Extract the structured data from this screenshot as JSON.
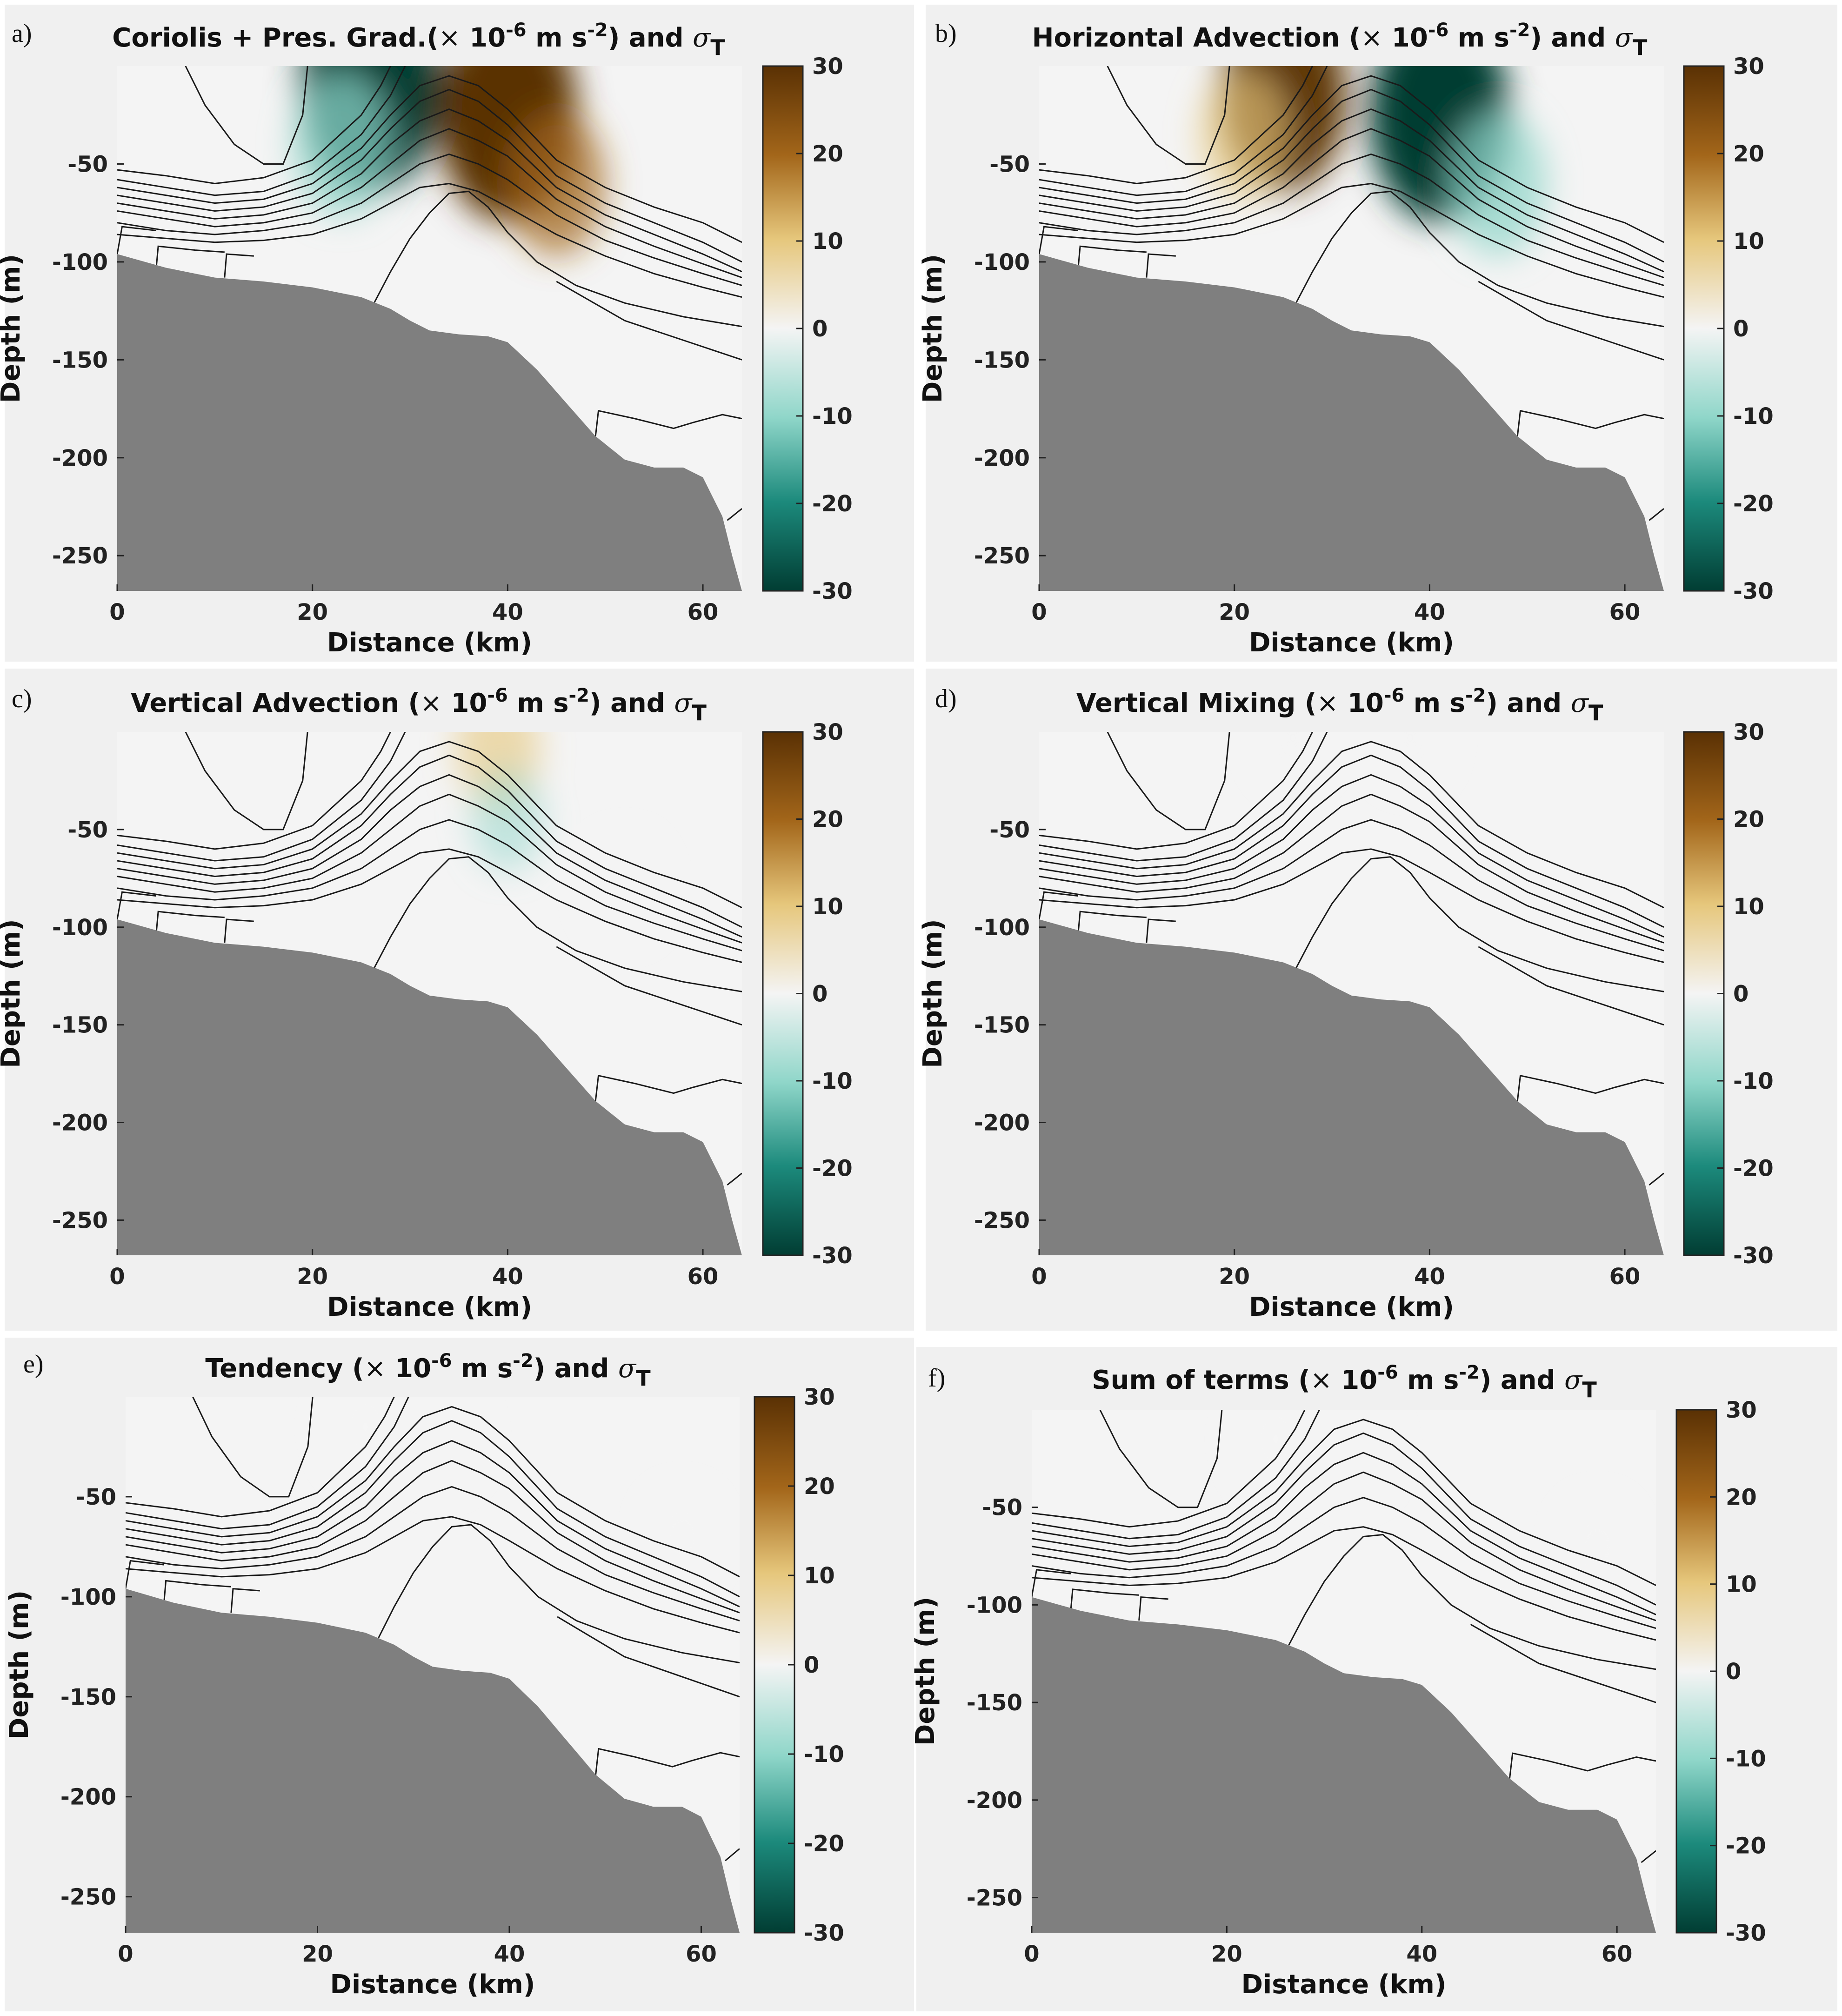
{
  "figure": {
    "field_label": "(× 10⁻⁶ m s⁻²)",
    "density_symbol": "σ",
    "density_subscript": "T",
    "xlabel": "Distance (km)",
    "ylabel": "Depth (m)",
    "colormap": {
      "name": "brown-teal diverging",
      "positive_color": "#5a3104",
      "mid_color": "#f4f4f4",
      "negative_color": "#013d33"
    },
    "bathymetry_color": "#7f7f7f",
    "panel_background": "#f0f0f0"
  },
  "chart_data": [
    {
      "panel": "a)",
      "type": "heatmap",
      "title": "Coriolis + Pres. Grad.(× 10-6 m s-2) and σT",
      "title_main": "Coriolis + Pres. Grad.(",
      "title_exp1": "-6",
      "title_mid": " m s",
      "title_exp2": "-2",
      "title_tail": ") and ",
      "xlabel": "Distance (km)",
      "ylabel": "Depth (m)",
      "xlim": [
        0,
        64
      ],
      "ylim": [
        -268,
        0
      ],
      "xticks": [
        "0",
        "20",
        "40",
        "60"
      ],
      "yticks": [
        "-50",
        "-100",
        "-150",
        "-200",
        "-250"
      ],
      "clim": [
        -30,
        30
      ],
      "cbar_ticks": [
        "30",
        "20",
        "10",
        "0",
        "-10",
        "-20",
        "-30"
      ],
      "anomalies": [
        {
          "x": 26,
          "depth": -10,
          "value": -30
        },
        {
          "x": 23,
          "depth": -40,
          "value": -15
        },
        {
          "x": 40,
          "depth": -25,
          "value": 30
        },
        {
          "x": 45,
          "depth": -60,
          "value": 15
        }
      ]
    },
    {
      "panel": "b)",
      "type": "heatmap",
      "title": "Horizontal Advection (× 10-6 m s-2) and σT",
      "title_main": "Horizontal Advection (",
      "title_exp1": "-6",
      "title_mid": " m s",
      "title_exp2": "-2",
      "title_tail": ") and ",
      "xlabel": "Distance (km)",
      "ylabel": "Depth (m)",
      "xlim": [
        0,
        64
      ],
      "ylim": [
        -268,
        0
      ],
      "xticks": [
        "0",
        "20",
        "40",
        "60"
      ],
      "yticks": [
        "-50",
        "-100",
        "-150",
        "-200",
        "-250"
      ],
      "clim": [
        -30,
        30
      ],
      "cbar_ticks": [
        "30",
        "20",
        "10",
        "0",
        "-10",
        "-20",
        "-30"
      ],
      "anomalies": [
        {
          "x": 25,
          "depth": -15,
          "value": 25
        },
        {
          "x": 21,
          "depth": -35,
          "value": 12
        },
        {
          "x": 41,
          "depth": -25,
          "value": -30
        },
        {
          "x": 47,
          "depth": -60,
          "value": -15
        }
      ]
    },
    {
      "panel": "c)",
      "type": "heatmap",
      "title": "Vertical Advection (× 10-6 m s-2) and σT",
      "title_main": "Vertical Advection (",
      "title_exp1": "-6",
      "title_mid": " m s",
      "title_exp2": "-2",
      "title_tail": ") and ",
      "xlabel": "Distance (km)",
      "ylabel": "Depth (m)",
      "xlim": [
        0,
        64
      ],
      "ylim": [
        -268,
        0
      ],
      "xticks": [
        "0",
        "20",
        "40",
        "60"
      ],
      "yticks": [
        "-50",
        "-100",
        "-150",
        "-200",
        "-250"
      ],
      "clim": [
        -30,
        30
      ],
      "cbar_ticks": [
        "30",
        "20",
        "10",
        "0",
        "-10",
        "-20",
        "-30"
      ],
      "anomalies": [
        {
          "x": 39,
          "depth": -8,
          "value": 10
        },
        {
          "x": 40,
          "depth": -45,
          "value": -6
        },
        {
          "x": 52,
          "depth": -80,
          "value": -4
        }
      ]
    },
    {
      "panel": "d)",
      "type": "heatmap",
      "title": "Vertical Mixing (× 10-6 m s-2) and σT",
      "title_main": "Vertical Mixing (",
      "title_exp1": "-6",
      "title_mid": " m s",
      "title_exp2": "-2",
      "title_tail": ") and ",
      "xlabel": "Distance (km)",
      "ylabel": "Depth (m)",
      "xlim": [
        0,
        64
      ],
      "ylim": [
        -268,
        0
      ],
      "xticks": [
        "0",
        "20",
        "40",
        "60"
      ],
      "yticks": [
        "-50",
        "-100",
        "-150",
        "-200",
        "-250"
      ],
      "clim": [
        -30,
        30
      ],
      "cbar_ticks": [
        "30",
        "20",
        "10",
        "0",
        "-10",
        "-20",
        "-30"
      ],
      "anomalies": [
        {
          "x": 26,
          "depth": -3,
          "value": 3
        },
        {
          "x": 38,
          "depth": -3,
          "value": 3
        }
      ]
    },
    {
      "panel": "e)",
      "type": "heatmap",
      "title": "Tendency (× 10-6 m s-2) and σT",
      "title_main": "Tendency (",
      "title_exp1": "-6",
      "title_mid": " m s",
      "title_exp2": "-2",
      "title_tail": ") and ",
      "xlabel": "Distance (km)",
      "ylabel": "Depth (m)",
      "xlim": [
        0,
        64
      ],
      "ylim": [
        -268,
        0
      ],
      "xticks": [
        "0",
        "20",
        "40",
        "60"
      ],
      "yticks": [
        "-50",
        "-100",
        "-150",
        "-200",
        "-250"
      ],
      "clim": [
        -30,
        30
      ],
      "cbar_ticks": [
        "30",
        "20",
        "10",
        "0",
        "-10",
        "-20",
        "-30"
      ],
      "anomalies": [
        {
          "x": 25,
          "depth": -15,
          "value": -5
        },
        {
          "x": 33,
          "depth": -20,
          "value": -4
        },
        {
          "x": 58,
          "depth": -70,
          "value": 2
        }
      ]
    },
    {
      "panel": "f)",
      "type": "heatmap",
      "title": "Sum of terms (× 10-6 m s-2) and σT",
      "title_main": "Sum of terms (",
      "title_exp1": "-6",
      "title_mid": " m s",
      "title_exp2": "-2",
      "title_tail": ") and ",
      "xlabel": "Distance (km)",
      "ylabel": "Depth (m)",
      "xlim": [
        0,
        64
      ],
      "ylim": [
        -268,
        0
      ],
      "xticks": [
        "0",
        "20",
        "40",
        "60"
      ],
      "yticks": [
        "-50",
        "-100",
        "-150",
        "-200",
        "-250"
      ],
      "clim": [
        -30,
        30
      ],
      "cbar_ticks": [
        "30",
        "20",
        "10",
        "0",
        "-10",
        "-20",
        "-30"
      ],
      "anomalies": [
        {
          "x": 25,
          "depth": -15,
          "value": -5
        },
        {
          "x": 33,
          "depth": -20,
          "value": -4
        },
        {
          "x": 58,
          "depth": -70,
          "value": 2
        }
      ]
    }
  ],
  "bathymetry": {
    "x": [
      0,
      5,
      10,
      15,
      20,
      25,
      28,
      30,
      32,
      35,
      38,
      40,
      43,
      46,
      49,
      52,
      55,
      58,
      60,
      62,
      63,
      64
    ],
    "depth": [
      -96,
      -103,
      -108,
      -110,
      -113,
      -118,
      -124,
      -130,
      -135,
      -137,
      -138,
      -141,
      -155,
      -172,
      -189,
      -201,
      -205,
      -205,
      -210,
      -230,
      -250,
      -268
    ]
  },
  "isopycnals": [
    {
      "x": [
        7,
        9,
        12,
        15,
        17,
        19,
        19.5
      ],
      "depth": [
        0,
        -20,
        -40,
        -50,
        -50,
        -25,
        0
      ]
    },
    {
      "x": [
        0,
        5,
        10,
        15,
        20,
        25,
        27,
        28
      ],
      "depth": [
        -53,
        -56,
        -60,
        -57,
        -48,
        -25,
        -10,
        0
      ]
    },
    {
      "x": [
        0,
        5,
        10,
        15,
        20,
        25,
        28,
        29.5
      ],
      "depth": [
        -58,
        -62,
        -66,
        -64,
        -55,
        -35,
        -15,
        0
      ]
    },
    {
      "x": [
        0,
        5,
        10,
        15,
        20,
        25,
        28,
        31,
        34,
        37,
        40,
        45,
        50,
        55,
        60,
        64
      ],
      "depth": [
        -62,
        -66,
        -70,
        -68,
        -60,
        -42,
        -25,
        -10,
        -5,
        -10,
        -22,
        -48,
        -62,
        -72,
        -80,
        -90
      ]
    },
    {
      "x": [
        0,
        5,
        10,
        15,
        20,
        25,
        28,
        31,
        34,
        37,
        40,
        45,
        50,
        55,
        60,
        64
      ],
      "depth": [
        -66,
        -70,
        -74,
        -72,
        -65,
        -48,
        -32,
        -18,
        -12,
        -18,
        -30,
        -56,
        -70,
        -80,
        -90,
        -100
      ]
    },
    {
      "x": [
        0,
        5,
        10,
        15,
        20,
        25,
        28,
        31,
        34,
        37,
        40,
        45,
        50,
        55,
        60,
        64
      ],
      "depth": [
        -70,
        -74,
        -78,
        -76,
        -70,
        -55,
        -40,
        -28,
        -22,
        -28,
        -38,
        -62,
        -76,
        -86,
        -96,
        -105
      ]
    },
    {
      "x": [
        0,
        5,
        10,
        15,
        20,
        25,
        28,
        31,
        34,
        37,
        40,
        45,
        50,
        55,
        60,
        64
      ],
      "depth": [
        -74,
        -78,
        -82,
        -80,
        -75,
        -62,
        -50,
        -38,
        -32,
        -38,
        -46,
        -68,
        -82,
        -92,
        -101,
        -108
      ]
    },
    {
      "x": [
        0,
        5,
        10,
        15,
        20,
        25,
        28,
        31,
        34,
        37,
        40,
        45,
        50,
        55,
        60,
        64
      ],
      "depth": [
        -80,
        -84,
        -86,
        -84,
        -80,
        -70,
        -60,
        -50,
        -45,
        -50,
        -58,
        -76,
        -89,
        -98,
        -106,
        -112
      ]
    },
    {
      "x": [
        0,
        5,
        10,
        15,
        20,
        25,
        28,
        31,
        34,
        37,
        40,
        45,
        50,
        55,
        60,
        64
      ],
      "depth": [
        -86,
        -88,
        -90,
        -89,
        -86,
        -78,
        -70,
        -62,
        -60,
        -64,
        -72,
        -86,
        -97,
        -106,
        -113,
        -118
      ]
    },
    {
      "x": [
        26,
        28,
        30,
        32,
        34,
        36,
        38,
        40,
        43,
        47,
        52,
        58,
        64
      ],
      "depth": [
        -124,
        -105,
        -88,
        -75,
        -65,
        -64,
        -72,
        -85,
        -100,
        -112,
        -121,
        -128,
        -133
      ]
    },
    {
      "x": [
        0,
        0.5,
        4
      ],
      "depth": [
        -96,
        -82,
        -84
      ]
    },
    {
      "x": [
        4,
        4.2,
        8,
        11
      ],
      "depth": [
        -103,
        -92,
        -94,
        -95
      ]
    },
    {
      "x": [
        11,
        11.2,
        14
      ],
      "depth": [
        -108,
        -96,
        -97
      ]
    },
    {
      "x": [
        45,
        52,
        58,
        64
      ],
      "depth": [
        -110,
        -130,
        -140,
        -150
      ]
    },
    {
      "x": [
        49,
        49.3,
        53,
        57,
        59,
        62,
        64
      ],
      "depth": [
        -189,
        -176,
        -180,
        -185,
        -182,
        -178,
        -180
      ]
    },
    {
      "x": [
        62.5,
        64
      ],
      "depth": [
        -232,
        -226
      ]
    }
  ]
}
